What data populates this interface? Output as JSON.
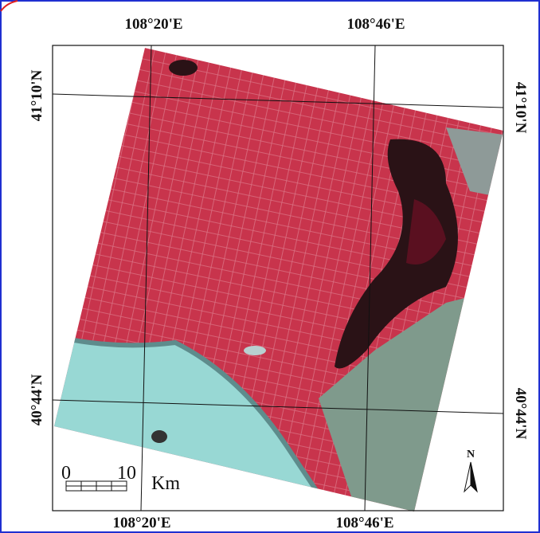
{
  "map": {
    "top_labels": [
      "108°20'E",
      "108°46'E"
    ],
    "bottom_labels": [
      "108°20'E",
      "108°46'E"
    ],
    "left_labels": [
      "41°10'N",
      "40°44'N"
    ],
    "right_labels": [
      "41°10'N",
      "40°44'N"
    ],
    "scale_bar": {
      "start": "0",
      "end": "10",
      "unit": "Km"
    },
    "north_arrow": "N"
  }
}
